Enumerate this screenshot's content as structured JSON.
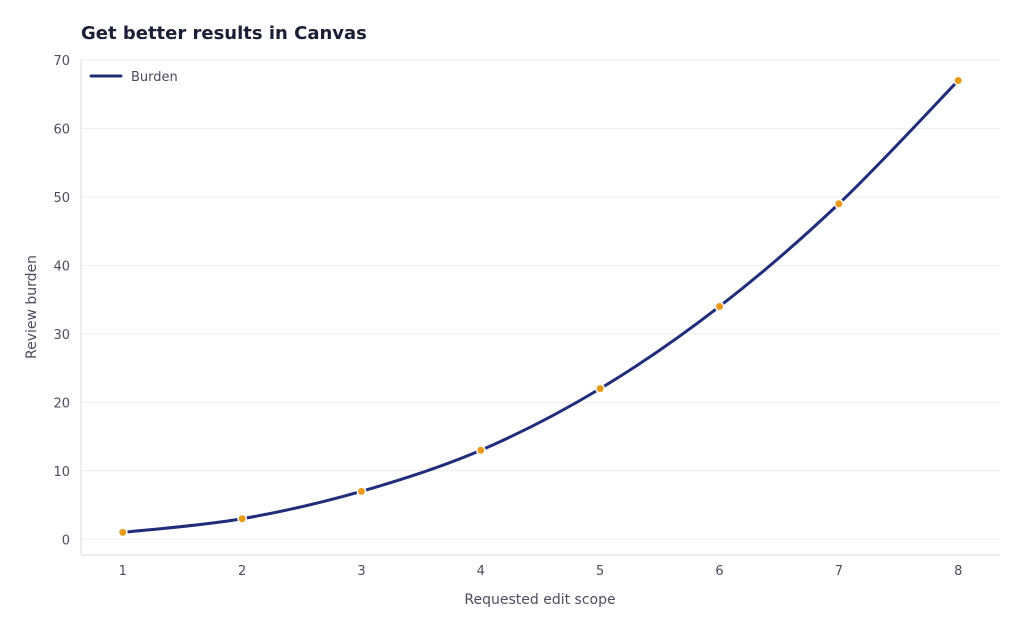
{
  "chart_data": {
    "type": "line",
    "title": "Get better results in Canvas",
    "xlabel": "Requested edit scope",
    "ylabel": "Review burden",
    "x": [
      1,
      2,
      3,
      4,
      5,
      6,
      7,
      8
    ],
    "series": [
      {
        "name": "Burden",
        "values": [
          1,
          3,
          7,
          13,
          22,
          34,
          49,
          67
        ]
      }
    ],
    "xticks": [
      "1",
      "2",
      "3",
      "4",
      "5",
      "6",
      "7",
      "8"
    ],
    "yticks": [
      "0",
      "10",
      "20",
      "30",
      "40",
      "50",
      "60",
      "70"
    ],
    "xlim": [
      0.65,
      8.35
    ],
    "ylim": [
      -2.3,
      70
    ],
    "grid": true,
    "legend_position": "top-left",
    "colors": {
      "line": "#1f2d7a",
      "marker": "#e89b1a",
      "marker_edge": "#ffffff",
      "grid": "#eeeeee",
      "axis": "#dddddd"
    }
  }
}
